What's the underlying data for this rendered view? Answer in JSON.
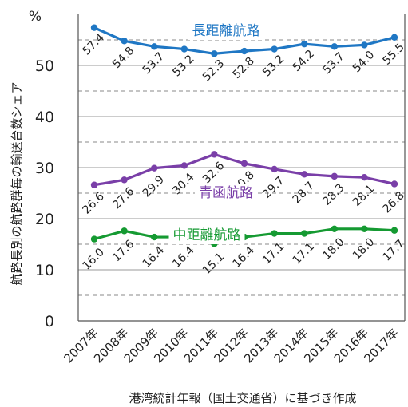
{
  "chart_data": {
    "type": "line",
    "categories": [
      "2007年",
      "2008年",
      "2009年",
      "2010年",
      "2011年",
      "2012年",
      "2013年",
      "2014年",
      "2015年",
      "2016年",
      "2017年"
    ],
    "series": [
      {
        "name": "長距離航路",
        "color": "#1f77c4",
        "values": [
          57.4,
          54.8,
          53.7,
          53.2,
          52.3,
          52.8,
          53.2,
          54.2,
          53.7,
          54.0,
          55.5
        ],
        "labels": [
          "57.4",
          "54.8",
          "53.7",
          "53.2",
          "52.3",
          "52.8",
          "53.2",
          "54.2",
          "53.7",
          "54.0",
          "55.5"
        ]
      },
      {
        "name": "青函航路",
        "color": "#7a3fa8",
        "values": [
          26.6,
          27.6,
          29.9,
          30.4,
          32.6,
          30.8,
          29.7,
          28.7,
          28.3,
          28.1,
          26.8
        ],
        "labels": [
          "26.6",
          "27.6",
          "29.9",
          "30.4",
          "32.6",
          "30.8",
          "29.7",
          "28.7",
          "28.3",
          "28.1",
          "26.8"
        ]
      },
      {
        "name": "中距離航路",
        "color": "#159a32",
        "values": [
          16.0,
          17.6,
          16.4,
          16.4,
          15.1,
          16.4,
          17.1,
          17.1,
          18.0,
          18.0,
          17.7
        ],
        "labels": [
          "16.0",
          "17.6",
          "16.4",
          "16.4",
          "15.1",
          "16.4",
          "17.1",
          "17.1",
          "18.0",
          "18.0",
          "17.7"
        ]
      }
    ],
    "ylim": [
      0,
      60
    ],
    "yticks": [
      0,
      10,
      20,
      30,
      40,
      50
    ],
    "unit": "%",
    "ylabel": "航路長別の航路群毎の輸送台数シェア",
    "xlabel": "港湾統計年報（国土交通省）に基づき作成",
    "grid": "solid at 10s, dashed at 5s"
  }
}
